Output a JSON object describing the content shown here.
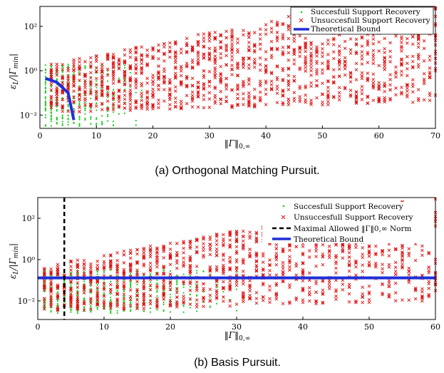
{
  "chart_data": [
    {
      "type": "scatter",
      "caption": "(a) Orthogonal Matching Pursuit.",
      "xlabel": "‖Γ‖0,∞",
      "ylabel": "εL/|Γmin|",
      "xlim": [
        0,
        70
      ],
      "ylim_log10": [
        -2.6,
        2.9
      ],
      "y_scale": "log",
      "x_ticks": [
        0,
        10,
        20,
        30,
        40,
        50,
        60,
        70
      ],
      "y_ticks": [
        "10⁻²",
        "10⁰",
        "10²"
      ],
      "legend_position": "top-right",
      "legend": [
        "Succesfull Support Recovery",
        "Unsuccesfull Support Recovery",
        "Theoretical Bound"
      ],
      "series": [
        {
          "name": "Succesfull Support Recovery",
          "marker": "dot",
          "color": "#22cc22",
          "x_range": [
            1,
            18
          ],
          "log10_y_range": [
            -2.5,
            0.3
          ]
        },
        {
          "name": "Unsuccesfull Support Recovery",
          "marker": "x",
          "color": "#e01010",
          "x_range": [
            2,
            70
          ],
          "log10_y_range": [
            -1.9,
            2.9
          ]
        },
        {
          "name": "Theoretical Bound",
          "marker": "line",
          "color": "#1f2fd6",
          "points": [
            [
              1,
              0.45
            ],
            [
              3,
              0.3
            ],
            [
              5,
              0.1
            ],
            [
              6,
              0.006
            ]
          ]
        }
      ]
    },
    {
      "type": "scatter",
      "caption": "(b) Basis Pursuit.",
      "xlabel": "‖Γ‖0,∞",
      "ylabel": "εL/|Γmin|",
      "xlim": [
        0,
        60
      ],
      "ylim_log10": [
        -2.9,
        3.0
      ],
      "y_scale": "log",
      "x_ticks": [
        0,
        10,
        20,
        30,
        40,
        50,
        60
      ],
      "y_ticks": [
        "10⁻²",
        "10⁰",
        "10²"
      ],
      "legend_position": "top-right",
      "legend": [
        "Succesfull Support Recovery",
        "Unsuccesfull Support Recovery",
        "Maximal Allowed ‖Γ‖0,∞ Norm",
        "Theoretical Bound"
      ],
      "series": [
        {
          "name": "Succesfull Support Recovery",
          "marker": "dot",
          "color": "#22cc22",
          "x_range": [
            1,
            30
          ],
          "log10_y_range": [
            -2.6,
            -0.5
          ]
        },
        {
          "name": "Unsuccesfull Support Recovery",
          "marker": "x",
          "color": "#e01010",
          "x_range": [
            1,
            60
          ],
          "log10_y_range": [
            -2.5,
            3.0
          ]
        },
        {
          "name": "Maximal Allowed ‖Γ‖0,∞ Norm",
          "marker": "dashed-vline",
          "color": "#000000",
          "x": 4
        },
        {
          "name": "Theoretical Bound",
          "marker": "hline",
          "color": "#1f2fd6",
          "y": 0.13
        }
      ]
    }
  ]
}
